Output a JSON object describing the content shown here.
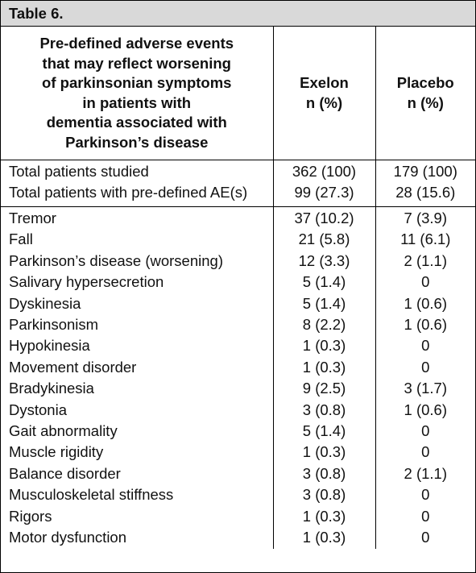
{
  "title": "Table 6.",
  "header": {
    "col1": [
      "Pre-defined adverse events",
      "that may reflect worsening",
      "of parkinsonian symptoms",
      "in patients with",
      "dementia associated with",
      "Parkinson’s disease"
    ],
    "col2": [
      "Exelon",
      "n (%)"
    ],
    "col3": [
      "Placebo",
      "n (%)"
    ]
  },
  "summary": [
    [
      "Total patients studied",
      "362 (100)",
      "179 (100)"
    ],
    [
      "Total patients with pre-defined AE(s)",
      "99 (27.3)",
      "28 (15.6)"
    ]
  ],
  "rows": [
    [
      "Tremor",
      "37 (10.2)",
      "7 (3.9)"
    ],
    [
      "Fall",
      "21 (5.8)",
      "11 (6.1)"
    ],
    [
      "Parkinson’s disease (worsening)",
      "12 (3.3)",
      "2 (1.1)"
    ],
    [
      "Salivary hypersecretion",
      "5 (1.4)",
      "0"
    ],
    [
      "Dyskinesia",
      "5 (1.4)",
      "1 (0.6)"
    ],
    [
      "Parkinsonism",
      "8 (2.2)",
      "1 (0.6)"
    ],
    [
      "Hypokinesia",
      "1 (0.3)",
      "0"
    ],
    [
      "Movement disorder",
      "1 (0.3)",
      "0"
    ],
    [
      "Bradykinesia",
      "9 (2.5)",
      "3 (1.7)"
    ],
    [
      "Dystonia",
      "3 (0.8)",
      "1 (0.6)"
    ],
    [
      "Gait abnormality",
      "5 (1.4)",
      "0"
    ],
    [
      "Muscle rigidity",
      "1 (0.3)",
      "0"
    ],
    [
      "Balance disorder",
      "3 (0.8)",
      "2 (1.1)"
    ],
    [
      "Musculoskeletal stiffness",
      "3 (0.8)",
      "0"
    ],
    [
      "Rigors",
      "1 (0.3)",
      "0"
    ],
    [
      "Motor dysfunction",
      "1 (0.3)",
      "0"
    ]
  ]
}
